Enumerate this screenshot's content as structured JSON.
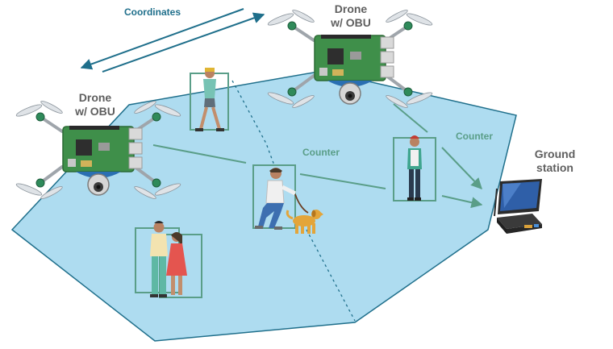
{
  "labels": {
    "coordinates": "Coordinates",
    "drone_left_line1": "Drone",
    "drone_left_line2": "w/ OBU",
    "drone_right_line1": "Drone",
    "drone_right_line2": "w/ OBU",
    "counter_center": "Counter",
    "counter_right": "Counter",
    "ground_line1": "Ground",
    "ground_line2": "station"
  },
  "colors": {
    "area_fill": "#aedcf0",
    "area_stroke": "#1f6f8b",
    "coordinates_text": "#1f6f8b",
    "counter_text": "#5a9e88",
    "arrow_green": "#5a9e88",
    "drone_label": "#5f5f5f",
    "detection_box": "#5a9e88",
    "board_green": "#3f8f4a",
    "frame_grey": "#c9c9c9"
  },
  "icons": [
    "drone-icon",
    "person-icon",
    "dog-icon",
    "ground-station-icon",
    "camera-icon"
  ]
}
